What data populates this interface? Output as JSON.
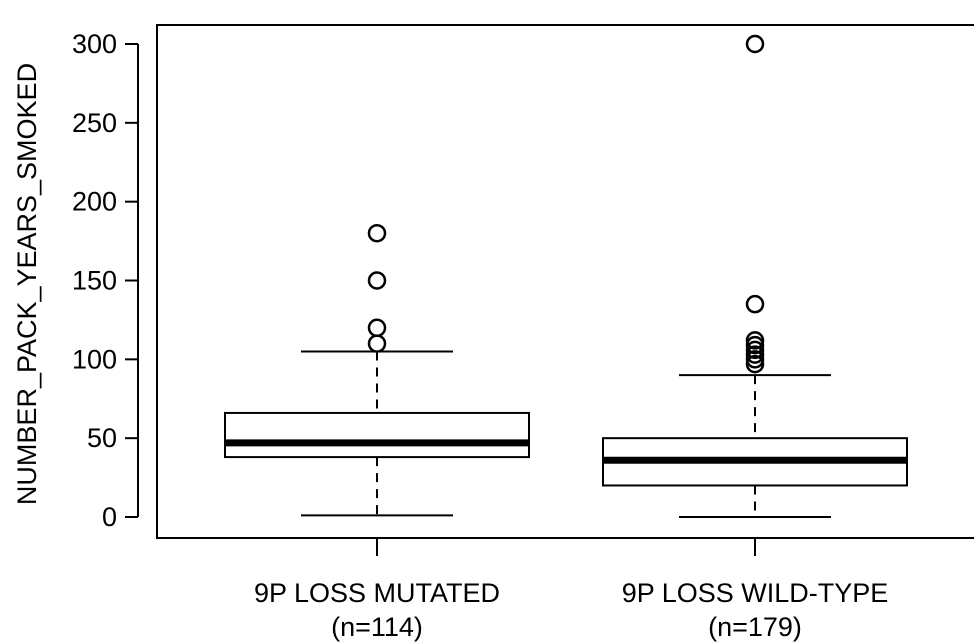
{
  "chart_data": {
    "type": "boxplot",
    "ylabel": "NUMBER_PACK_YEARS_SMOKED",
    "ylim": [
      0,
      300
    ],
    "yticks": [
      0,
      50,
      100,
      150,
      200,
      250,
      300
    ],
    "grid": false,
    "categories": [
      {
        "label": "9P LOSS MUTATED",
        "n_label": "(n=114)"
      },
      {
        "label": "9P LOSS WILD-TYPE",
        "n_label": "(n=179)"
      }
    ],
    "boxes": [
      {
        "whisker_low": 1,
        "q1": 38,
        "median": 47,
        "q3": 66,
        "whisker_high": 105,
        "outliers": [
          110,
          120,
          150,
          180
        ]
      },
      {
        "whisker_low": 0,
        "q1": 20,
        "median": 36,
        "q3": 50,
        "whisker_high": 90,
        "outliers": [
          97,
          100,
          103,
          106,
          109,
          112,
          135,
          300
        ]
      }
    ]
  }
}
